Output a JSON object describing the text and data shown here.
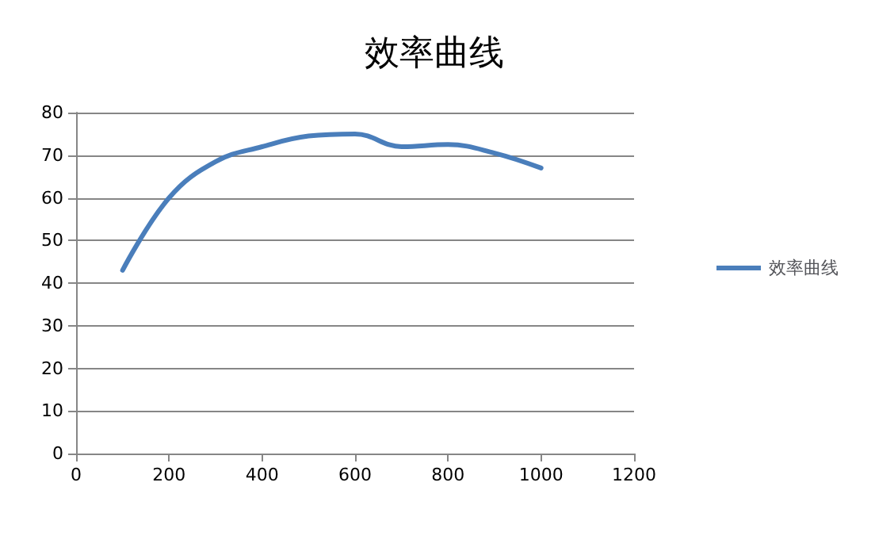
{
  "chart_data": {
    "type": "line",
    "title": "效率曲线",
    "x": [
      100,
      200,
      300,
      400,
      500,
      600,
      700,
      800,
      900,
      1000
    ],
    "series": [
      {
        "name": "效率曲线",
        "color": "#4a7ebb",
        "values": [
          43,
          60,
          68.5,
          72,
          74.5,
          75,
          72,
          72.5,
          70.5,
          67
        ]
      }
    ],
    "xlim": [
      0,
      1200
    ],
    "xticks": [
      0,
      200,
      400,
      600,
      800,
      1000,
      1200
    ],
    "ylim": [
      0,
      80
    ],
    "yticks": [
      0,
      10,
      20,
      30,
      40,
      50,
      60,
      70,
      80
    ],
    "grid": "y",
    "legend": "right",
    "marker": "none",
    "line_style": "solid"
  }
}
